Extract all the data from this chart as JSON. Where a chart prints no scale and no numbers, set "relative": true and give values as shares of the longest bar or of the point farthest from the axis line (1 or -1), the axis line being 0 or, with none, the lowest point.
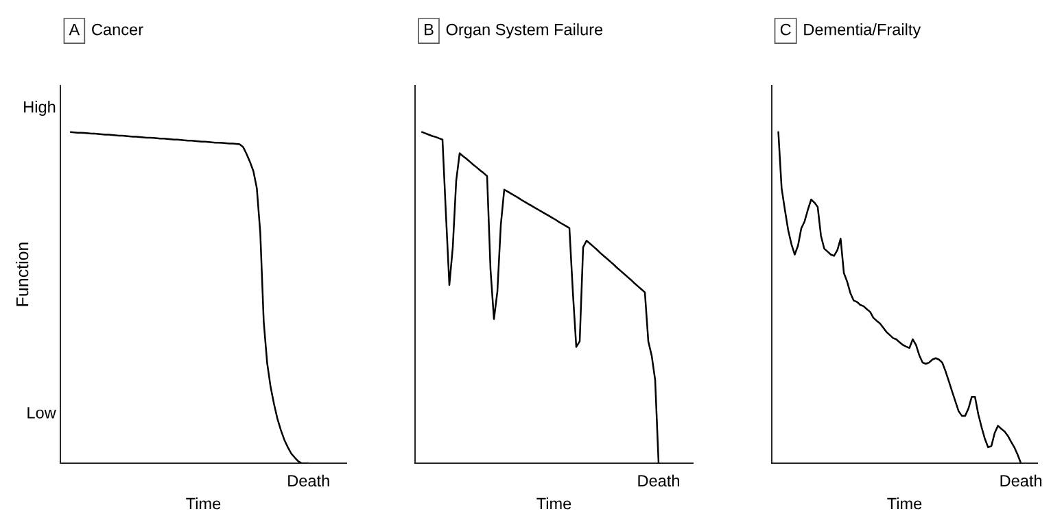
{
  "chart_data": [
    {
      "type": "line",
      "relative": true,
      "title": "A",
      "subtitle": "Cancer",
      "xlabel": "Time",
      "ylabel": "Function",
      "annotations": [
        "High",
        "Low",
        "Death"
      ],
      "categories": [
        null,
        null,
        null,
        null,
        null,
        null,
        null,
        null,
        null,
        null,
        null,
        null,
        null,
        null,
        null,
        null,
        null,
        null,
        null,
        null,
        null,
        null,
        null,
        null,
        null,
        null,
        null,
        null,
        null,
        null,
        null,
        null,
        null,
        null,
        null,
        null,
        null,
        null,
        null,
        null,
        null,
        null,
        null,
        null,
        null,
        null,
        null,
        null,
        null,
        null,
        null,
        null,
        null,
        null,
        null,
        null,
        null,
        null,
        null,
        null,
        null,
        null,
        null,
        null,
        null,
        null,
        null,
        null,
        null,
        null,
        null,
        null,
        null,
        null,
        null,
        null,
        null,
        null,
        null,
        null,
        null,
        null,
        null,
        null
      ],
      "series": [
        {
          "color": "#000000",
          "values": [
            null,
            null,
            null,
            1.0,
            0.999,
            0.998,
            0.998,
            0.997,
            0.996,
            0.995,
            0.995,
            0.994,
            0.993,
            0.992,
            0.992,
            0.991,
            0.99,
            0.989,
            0.989,
            0.988,
            0.987,
            0.986,
            0.986,
            0.985,
            0.984,
            0.983,
            0.983,
            0.982,
            0.981,
            0.98,
            0.98,
            0.979,
            0.978,
            0.977,
            0.977,
            0.976,
            0.975,
            0.974,
            0.974,
            0.973,
            0.972,
            0.971,
            0.971,
            0.97,
            0.969,
            0.968,
            0.968,
            0.967,
            0.966,
            0.965,
            0.965,
            0.964,
            0.963,
            0.955,
            0.934,
            0.91,
            0.882,
            0.83,
            0.696,
            0.427,
            0.302,
            0.23,
            0.178,
            0.133,
            0.099,
            0.07,
            0.048,
            0.029,
            0.017,
            0.006,
            0.0,
            0.0,
            0.0,
            null,
            null,
            null,
            null,
            null,
            null,
            null,
            null,
            null,
            null,
            null
          ]
        }
      ]
    },
    {
      "type": "line",
      "relative": true,
      "title": "B",
      "subtitle": "Organ System Failure",
      "xlabel": "Time",
      "annotations": [
        "Death"
      ],
      "categories": [
        null,
        null,
        null,
        null,
        null,
        null,
        null,
        null,
        null,
        null,
        null,
        null,
        null,
        null,
        null,
        null,
        null,
        null,
        null,
        null,
        null,
        null,
        null,
        null,
        null,
        null,
        null,
        null,
        null,
        null,
        null,
        null,
        null,
        null,
        null,
        null,
        null,
        null,
        null,
        null,
        null,
        null,
        null,
        null,
        null,
        null,
        null,
        null,
        null,
        null,
        null,
        null,
        null,
        null,
        null,
        null,
        null,
        null,
        null,
        null,
        null,
        null,
        null,
        null,
        null,
        null,
        null,
        null,
        null,
        null,
        null,
        null,
        null,
        null,
        null,
        null,
        null,
        null,
        null,
        null,
        null,
        null
      ],
      "series": [
        {
          "color": "#000000",
          "values": [
            null,
            null,
            1.0,
            0.996,
            0.992,
            0.988,
            0.985,
            0.981,
            0.977,
            0.752,
            0.538,
            0.652,
            0.853,
            0.936,
            0.927,
            0.919,
            0.91,
            0.901,
            0.893,
            0.884,
            0.876,
            0.867,
            0.585,
            0.435,
            0.518,
            0.719,
            0.826,
            0.82,
            0.814,
            0.808,
            0.802,
            0.795,
            0.789,
            0.783,
            0.777,
            0.771,
            0.765,
            0.759,
            0.753,
            0.747,
            0.741,
            0.735,
            0.728,
            0.722,
            0.716,
            0.71,
            0.518,
            0.351,
            0.368,
            0.652,
            0.672,
            0.663,
            0.654,
            0.645,
            0.635,
            0.626,
            0.617,
            0.608,
            0.599,
            0.589,
            0.58,
            0.571,
            0.562,
            0.553,
            0.543,
            0.534,
            0.525,
            0.516,
            0.368,
            0.324,
            0.251,
            0.0,
            null,
            null,
            null,
            null,
            null,
            null,
            null,
            null,
            null,
            null
          ]
        }
      ]
    },
    {
      "type": "line",
      "relative": true,
      "title": "C",
      "subtitle": "Dementia/Frailty",
      "xlabel": "Time",
      "annotations": [
        "Death"
      ],
      "categories": [
        null,
        null,
        null,
        null,
        null,
        null,
        null,
        null,
        null,
        null,
        null,
        null,
        null,
        null,
        null,
        null,
        null,
        null,
        null,
        null,
        null,
        null,
        null,
        null,
        null,
        null,
        null,
        null,
        null,
        null,
        null,
        null,
        null,
        null,
        null,
        null,
        null,
        null,
        null,
        null,
        null,
        null,
        null,
        null,
        null,
        null,
        null,
        null,
        null,
        null,
        null,
        null,
        null,
        null,
        null,
        null,
        null,
        null,
        null,
        null,
        null,
        null,
        null,
        null,
        null,
        null,
        null,
        null,
        null,
        null,
        null,
        null,
        null,
        null,
        null,
        null,
        null,
        null,
        null,
        null,
        null,
        null
      ],
      "series": [
        {
          "color": "#000000",
          "values": [
            null,
            null,
            1.0,
            0.83,
            0.765,
            0.704,
            0.661,
            0.63,
            0.657,
            0.709,
            0.73,
            0.765,
            0.796,
            0.787,
            0.774,
            0.687,
            0.648,
            0.639,
            0.63,
            0.626,
            0.643,
            0.678,
            0.574,
            0.548,
            0.513,
            0.491,
            0.487,
            0.478,
            0.474,
            0.465,
            0.457,
            0.439,
            0.43,
            0.422,
            0.409,
            0.396,
            0.387,
            0.378,
            0.374,
            0.365,
            0.357,
            0.352,
            0.348,
            0.374,
            0.357,
            0.326,
            0.304,
            0.3,
            0.304,
            0.313,
            0.317,
            0.313,
            0.304,
            0.278,
            0.248,
            0.217,
            0.187,
            0.157,
            0.143,
            0.143,
            0.165,
            0.2,
            0.2,
            0.148,
            0.109,
            0.074,
            0.048,
            0.052,
            0.091,
            0.113,
            0.104,
            0.096,
            0.083,
            0.065,
            0.048,
            0.026,
            0.0,
            null,
            null,
            null,
            null,
            null
          ]
        }
      ]
    }
  ]
}
